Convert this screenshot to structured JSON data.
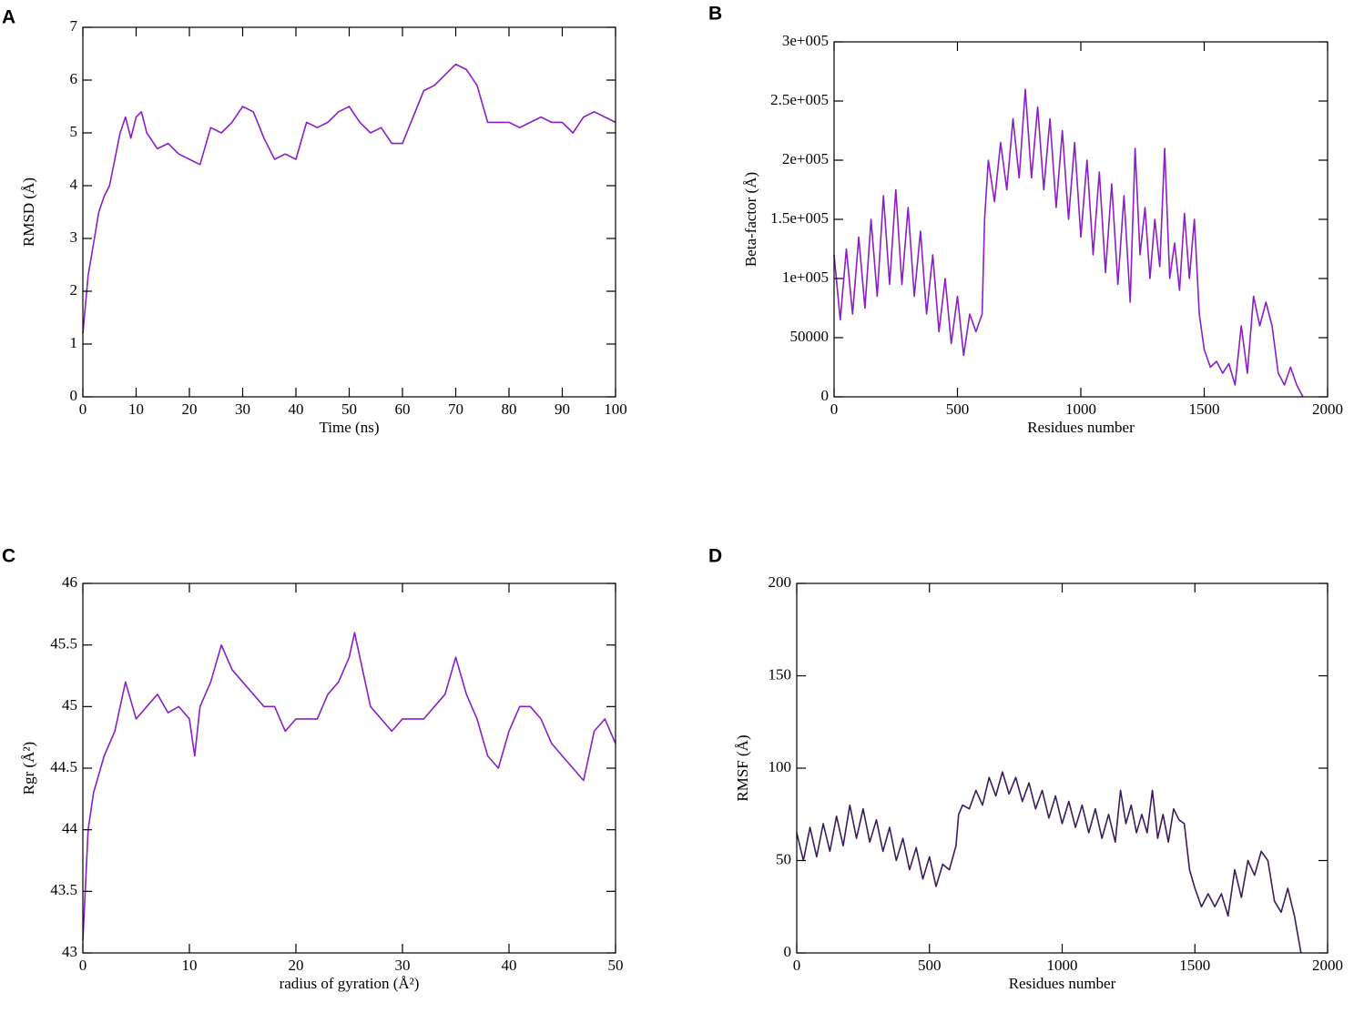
{
  "chart_data": [
    {
      "type": "line",
      "panel_label": "A",
      "xlabel": "Time (ns)",
      "ylabel": "RMSD (Å)",
      "color": "#8a1fc6",
      "xlim": [
        0,
        100
      ],
      "ylim": [
        0,
        7
      ],
      "xticks": [
        0,
        10,
        20,
        30,
        40,
        50,
        60,
        70,
        80,
        90,
        100
      ],
      "yticks": [
        0,
        1,
        2,
        3,
        4,
        5,
        6,
        7
      ],
      "x": [
        0,
        1,
        2,
        3,
        4,
        5,
        6,
        7,
        8,
        9,
        10,
        11,
        12,
        14,
        16,
        18,
        20,
        22,
        24,
        26,
        28,
        30,
        32,
        34,
        36,
        38,
        40,
        42,
        44,
        46,
        48,
        50,
        52,
        54,
        56,
        58,
        60,
        62,
        64,
        66,
        68,
        70,
        72,
        74,
        76,
        78,
        80,
        82,
        84,
        86,
        88,
        90,
        92,
        94,
        96,
        98,
        100
      ],
      "values": [
        1.2,
        2.3,
        2.9,
        3.5,
        3.8,
        4.0,
        4.5,
        5.0,
        5.3,
        4.9,
        5.3,
        5.4,
        5.0,
        4.7,
        4.8,
        4.6,
        4.5,
        4.4,
        5.1,
        5.0,
        5.2,
        5.5,
        5.4,
        4.9,
        4.5,
        4.6,
        4.5,
        5.2,
        5.1,
        5.2,
        5.4,
        5.5,
        5.2,
        5.0,
        5.1,
        4.8,
        4.8,
        5.3,
        5.8,
        5.9,
        6.1,
        6.3,
        6.2,
        5.9,
        5.2,
        5.2,
        5.2,
        5.1,
        5.2,
        5.3,
        5.2,
        5.2,
        5.0,
        5.3,
        5.4,
        5.3,
        5.2
      ]
    },
    {
      "type": "line",
      "panel_label": "B",
      "xlabel": "Residues number",
      "ylabel": "Beta-factor (Å)",
      "color": "#8a1fc6",
      "xlim": [
        0,
        2000
      ],
      "ylim": [
        0,
        300000
      ],
      "xticks": [
        0,
        500,
        1000,
        1500,
        2000
      ],
      "yticks": [
        0,
        50000,
        {
          "value": 100000,
          "label": "1e+005"
        },
        {
          "value": 150000,
          "label": "1.5e+005"
        },
        {
          "value": 200000,
          "label": "2e+005"
        },
        {
          "value": 250000,
          "label": "2.5e+005"
        },
        {
          "value": 300000,
          "label": "3e+005"
        }
      ],
      "x": [
        0,
        25,
        50,
        75,
        100,
        125,
        150,
        175,
        200,
        225,
        250,
        275,
        300,
        325,
        350,
        375,
        400,
        425,
        450,
        475,
        500,
        525,
        550,
        575,
        600,
        610,
        625,
        650,
        675,
        700,
        725,
        750,
        775,
        800,
        825,
        850,
        875,
        900,
        925,
        950,
        975,
        1000,
        1025,
        1050,
        1075,
        1100,
        1125,
        1150,
        1175,
        1200,
        1220,
        1240,
        1260,
        1280,
        1300,
        1320,
        1340,
        1360,
        1380,
        1400,
        1420,
        1440,
        1460,
        1480,
        1500,
        1525,
        1550,
        1575,
        1600,
        1625,
        1650,
        1675,
        1700,
        1725,
        1750,
        1775,
        1800,
        1825,
        1850,
        1875,
        1900
      ],
      "values": [
        120000,
        65000,
        125000,
        70000,
        135000,
        75000,
        150000,
        85000,
        170000,
        95000,
        175000,
        95000,
        160000,
        85000,
        140000,
        70000,
        120000,
        55000,
        100000,
        45000,
        85000,
        35000,
        70000,
        55000,
        70000,
        150000,
        200000,
        165000,
        215000,
        175000,
        235000,
        185000,
        260000,
        185000,
        245000,
        175000,
        235000,
        160000,
        225000,
        150000,
        215000,
        135000,
        200000,
        120000,
        190000,
        105000,
        180000,
        95000,
        170000,
        80000,
        210000,
        120000,
        160000,
        100000,
        150000,
        110000,
        210000,
        100000,
        130000,
        90000,
        155000,
        100000,
        150000,
        70000,
        40000,
        25000,
        30000,
        20000,
        28000,
        10000,
        60000,
        20000,
        85000,
        60000,
        80000,
        60000,
        20000,
        10000,
        25000,
        10000,
        0
      ]
    },
    {
      "type": "line",
      "panel_label": "C",
      "xlabel": "radius of gyration (Å²)",
      "ylabel": "Rgr (Å²)",
      "color": "#8a1fc6",
      "xlim": [
        0,
        50
      ],
      "ylim": [
        43,
        46
      ],
      "xticks": [
        0,
        10,
        20,
        30,
        40,
        50
      ],
      "yticks": [
        43,
        43.5,
        44,
        44.5,
        45,
        45.5,
        46
      ],
      "x": [
        0,
        0.5,
        1,
        2,
        3,
        4,
        5,
        6,
        7,
        8,
        9,
        10,
        10.5,
        11,
        12,
        13,
        14,
        15,
        16,
        17,
        18,
        19,
        20,
        21,
        22,
        23,
        24,
        25,
        25.5,
        26,
        27,
        28,
        29,
        30,
        31,
        32,
        33,
        34,
        35,
        36,
        37,
        38,
        39,
        40,
        41,
        42,
        43,
        44,
        45,
        46,
        47,
        48,
        49,
        50
      ],
      "values": [
        43.1,
        44.0,
        44.3,
        44.6,
        44.8,
        45.2,
        44.9,
        45.0,
        45.1,
        44.95,
        45.0,
        44.9,
        44.6,
        45.0,
        45.2,
        45.5,
        45.3,
        45.2,
        45.1,
        45.0,
        45.0,
        44.8,
        44.9,
        44.9,
        44.9,
        45.1,
        45.2,
        45.4,
        45.6,
        45.4,
        45.0,
        44.9,
        44.8,
        44.9,
        44.9,
        44.9,
        45.0,
        45.1,
        45.4,
        45.1,
        44.9,
        44.6,
        44.5,
        44.8,
        45.0,
        45.0,
        44.9,
        44.7,
        44.6,
        44.5,
        44.4,
        44.8,
        44.9,
        44.7
      ]
    },
    {
      "type": "line",
      "panel_label": "D",
      "xlabel": "Residues number",
      "ylabel": "RMSF (Å)",
      "color": "#3b1d5e",
      "xlim": [
        0,
        2000
      ],
      "ylim": [
        0,
        200
      ],
      "xticks": [
        0,
        500,
        1000,
        1500,
        2000
      ],
      "yticks": [
        0,
        50,
        100,
        150,
        200
      ],
      "x": [
        0,
        25,
        50,
        75,
        100,
        125,
        150,
        175,
        200,
        225,
        250,
        275,
        300,
        325,
        350,
        375,
        400,
        425,
        450,
        475,
        500,
        525,
        550,
        575,
        600,
        610,
        625,
        650,
        675,
        700,
        725,
        750,
        775,
        800,
        825,
        850,
        875,
        900,
        925,
        950,
        975,
        1000,
        1025,
        1050,
        1075,
        1100,
        1125,
        1150,
        1175,
        1200,
        1220,
        1240,
        1260,
        1280,
        1300,
        1320,
        1340,
        1360,
        1380,
        1400,
        1420,
        1440,
        1460,
        1480,
        1500,
        1525,
        1550,
        1575,
        1600,
        1625,
        1650,
        1675,
        1700,
        1725,
        1750,
        1775,
        1800,
        1825,
        1850,
        1875,
        1900
      ],
      "values": [
        65,
        50,
        68,
        52,
        70,
        55,
        74,
        58,
        80,
        62,
        78,
        60,
        72,
        55,
        68,
        50,
        62,
        45,
        57,
        40,
        52,
        36,
        48,
        45,
        58,
        75,
        80,
        78,
        88,
        80,
        95,
        85,
        98,
        86,
        95,
        82,
        92,
        78,
        88,
        73,
        85,
        70,
        82,
        68,
        80,
        65,
        78,
        62,
        75,
        60,
        88,
        70,
        80,
        65,
        75,
        65,
        88,
        62,
        75,
        60,
        78,
        72,
        70,
        45,
        35,
        25,
        32,
        25,
        32,
        20,
        45,
        30,
        50,
        42,
        55,
        50,
        28,
        22,
        35,
        20,
        0
      ]
    }
  ]
}
